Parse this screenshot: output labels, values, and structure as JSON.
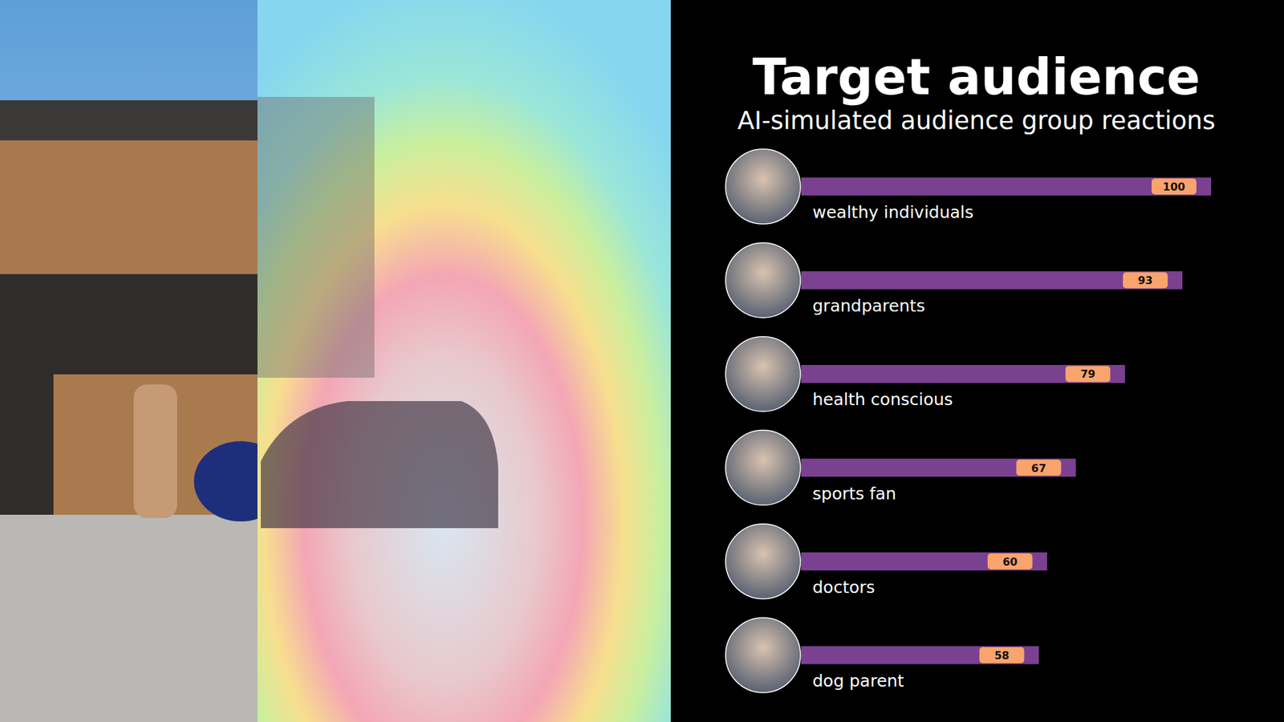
{
  "chart_data": {
    "type": "bar",
    "orientation": "horizontal",
    "title": "Target audience",
    "subtitle": "AI-simulated audience group reactions",
    "categories": [
      "wealthy individuals",
      "grandparents",
      "health conscious",
      "sports fan",
      "doctors",
      "dog parent"
    ],
    "values": [
      100,
      93,
      79,
      67,
      60,
      58
    ],
    "color": "#7b4191",
    "xlim": [
      0,
      100
    ],
    "data_labels": true,
    "tick_labels": false,
    "grid": false
  }
}
